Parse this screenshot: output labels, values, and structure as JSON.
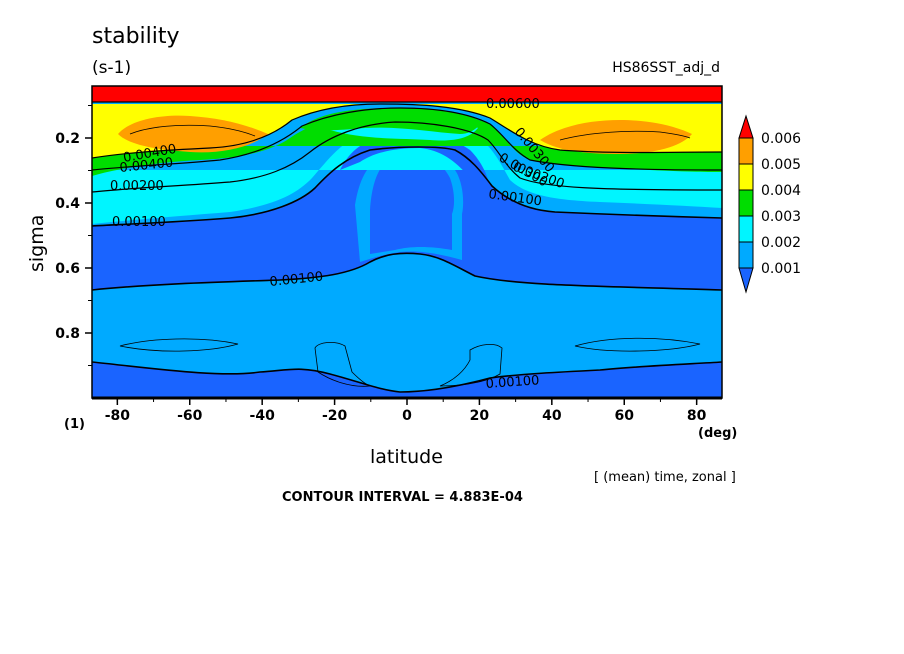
{
  "header": {
    "title": "stability",
    "units": "(s-1)",
    "run_name": "HS86SST_adj_d"
  },
  "footer": {
    "x_unit": "(deg)",
    "corner_label": "(1)",
    "mean_info": "[ (mean) time, zonal ]",
    "contour_interval": "CONTOUR INTERVAL = 4.883E-04"
  },
  "colors": {
    "band_0": "#1a64ff",
    "band_1": "#00aaff",
    "band_2": "#00f5ff",
    "band_3": "#00dd00",
    "band_4": "#ffff00",
    "band_5": "#ff9f00",
    "band_6": "#ff0000"
  },
  "chart_data": {
    "type": "heatmap",
    "title": "stability",
    "units": "(s-1)",
    "xlabel": "latitude",
    "ylabel": "sigma",
    "xlim": [
      -87,
      87
    ],
    "ylim": [
      1.0,
      0.04
    ],
    "x_ticks": [
      "-80",
      "-60",
      "-40",
      "-20",
      "0",
      "20",
      "40",
      "60",
      "80"
    ],
    "y_ticks": [
      "0.2",
      "0.4",
      "0.6",
      "0.8"
    ],
    "colorbar_levels": [
      "0.001",
      "0.002",
      "0.003",
      "0.004",
      "0.005",
      "0.006"
    ],
    "contour_labels": [
      "0.00600",
      "0.00400",
      "0.00400",
      "0.00300",
      "0.00300",
      "0.00200",
      "0.00200",
      "0.00100",
      "0.00100",
      "0.00100",
      "0.00100"
    ],
    "contour_interval": "4.883E-04",
    "grid": false,
    "legend": "right colorbar"
  }
}
